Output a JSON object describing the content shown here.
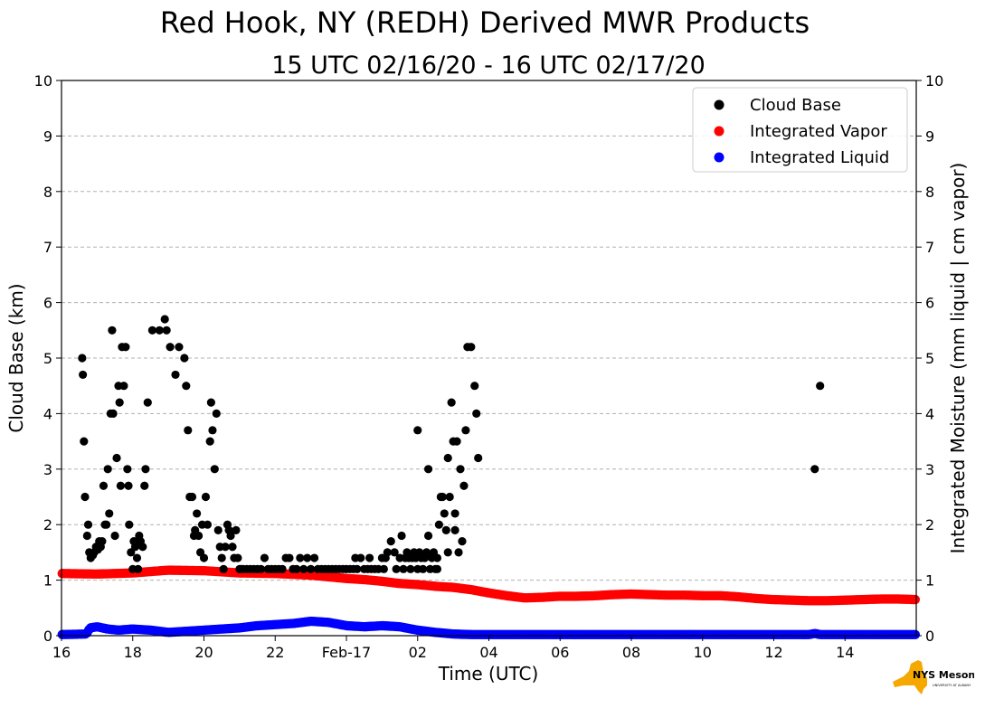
{
  "chart_data": {
    "type": "scatter",
    "title": "Red Hook, NY (REDH) Derived MWR Products",
    "subtitle": "15 UTC 02/16/20 - 16 UTC 02/17/20",
    "xlabel": "Time (UTC)",
    "ylabel": "Cloud Base (km)",
    "ylabel_right": "Integrated Moisture (mm liquid | cm vapor)",
    "x_units": "hours since 16 UTC 02/16",
    "xlim": [
      0,
      24
    ],
    "ylim": [
      0,
      10
    ],
    "ylim_right": [
      0,
      10
    ],
    "x_ticks": [
      {
        "x": 0,
        "label": "16"
      },
      {
        "x": 2,
        "label": "18"
      },
      {
        "x": 4,
        "label": "20"
      },
      {
        "x": 6,
        "label": "22"
      },
      {
        "x": 8,
        "label": "Feb-17"
      },
      {
        "x": 10,
        "label": "02"
      },
      {
        "x": 12,
        "label": "04"
      },
      {
        "x": 14,
        "label": "06"
      },
      {
        "x": 16,
        "label": "08"
      },
      {
        "x": 18,
        "label": "10"
      },
      {
        "x": 20,
        "label": "12"
      },
      {
        "x": 22,
        "label": "14"
      }
    ],
    "y_ticks": [
      "0",
      "1",
      "2",
      "3",
      "4",
      "5",
      "6",
      "7",
      "8",
      "9",
      "10"
    ],
    "grid": "horizontal-dashed",
    "legend_position": "top-right",
    "series": [
      {
        "name": "Cloud Base",
        "color": "#000000",
        "points": [
          [
            0.58,
            5.0
          ],
          [
            0.6,
            4.7
          ],
          [
            0.63,
            3.5
          ],
          [
            0.66,
            2.5
          ],
          [
            0.72,
            1.8
          ],
          [
            0.75,
            2.0
          ],
          [
            0.78,
            1.5
          ],
          [
            0.82,
            1.4
          ],
          [
            0.88,
            1.45
          ],
          [
            0.92,
            1.5
          ],
          [
            0.97,
            1.6
          ],
          [
            1.02,
            1.55
          ],
          [
            1.06,
            1.7
          ],
          [
            1.1,
            1.6
          ],
          [
            1.14,
            1.7
          ],
          [
            1.18,
            2.7
          ],
          [
            1.22,
            2.0
          ],
          [
            1.26,
            2.0
          ],
          [
            1.3,
            3.0
          ],
          [
            1.34,
            2.2
          ],
          [
            1.38,
            4.0
          ],
          [
            1.42,
            5.5
          ],
          [
            1.45,
            4.0
          ],
          [
            1.5,
            1.8
          ],
          [
            1.55,
            3.2
          ],
          [
            1.6,
            4.5
          ],
          [
            1.63,
            4.2
          ],
          [
            1.66,
            2.7
          ],
          [
            1.7,
            5.2
          ],
          [
            1.75,
            4.5
          ],
          [
            1.8,
            5.2
          ],
          [
            1.85,
            3.0
          ],
          [
            1.88,
            2.7
          ],
          [
            1.9,
            2.0
          ],
          [
            1.95,
            1.5
          ],
          [
            2.0,
            1.2
          ],
          [
            2.03,
            1.7
          ],
          [
            2.07,
            1.6
          ],
          [
            2.12,
            1.4
          ],
          [
            2.15,
            1.2
          ],
          [
            2.18,
            1.8
          ],
          [
            2.22,
            1.7
          ],
          [
            2.28,
            1.6
          ],
          [
            2.33,
            2.7
          ],
          [
            2.36,
            3.0
          ],
          [
            2.42,
            4.2
          ],
          [
            2.55,
            5.5
          ],
          [
            2.75,
            5.5
          ],
          [
            2.9,
            5.7
          ],
          [
            2.95,
            5.5
          ],
          [
            3.05,
            5.2
          ],
          [
            3.2,
            4.7
          ],
          [
            3.3,
            5.2
          ],
          [
            3.45,
            5.0
          ],
          [
            3.5,
            4.5
          ],
          [
            3.55,
            3.7
          ],
          [
            3.6,
            2.5
          ],
          [
            3.67,
            2.5
          ],
          [
            3.72,
            1.8
          ],
          [
            3.75,
            1.9
          ],
          [
            3.8,
            2.2
          ],
          [
            3.85,
            1.8
          ],
          [
            3.9,
            1.5
          ],
          [
            3.95,
            2.0
          ],
          [
            4.0,
            1.4
          ],
          [
            4.05,
            2.5
          ],
          [
            4.1,
            2.0
          ],
          [
            4.17,
            3.5
          ],
          [
            4.2,
            4.2
          ],
          [
            4.24,
            3.7
          ],
          [
            4.3,
            3.0
          ],
          [
            4.35,
            4.0
          ],
          [
            4.4,
            1.9
          ],
          [
            4.45,
            1.6
          ],
          [
            4.5,
            1.4
          ],
          [
            4.55,
            1.2
          ],
          [
            4.6,
            1.6
          ],
          [
            4.66,
            2.0
          ],
          [
            4.7,
            1.9
          ],
          [
            4.75,
            1.8
          ],
          [
            4.8,
            1.6
          ],
          [
            4.85,
            1.4
          ],
          [
            4.9,
            1.9
          ],
          [
            4.95,
            1.4
          ],
          [
            5.0,
            1.2
          ],
          [
            5.05,
            1.2
          ],
          [
            5.1,
            1.2
          ],
          [
            5.2,
            1.2
          ],
          [
            5.3,
            1.2
          ],
          [
            5.4,
            1.2
          ],
          [
            5.5,
            1.2
          ],
          [
            5.6,
            1.2
          ],
          [
            5.7,
            1.4
          ],
          [
            5.8,
            1.2
          ],
          [
            5.9,
            1.2
          ],
          [
            6.0,
            1.2
          ],
          [
            6.1,
            1.2
          ],
          [
            6.2,
            1.2
          ],
          [
            6.3,
            1.4
          ],
          [
            6.4,
            1.4
          ],
          [
            6.5,
            1.2
          ],
          [
            6.6,
            1.2
          ],
          [
            6.7,
            1.4
          ],
          [
            6.8,
            1.2
          ],
          [
            6.9,
            1.4
          ],
          [
            7.0,
            1.2
          ],
          [
            7.1,
            1.4
          ],
          [
            7.2,
            1.2
          ],
          [
            7.3,
            1.2
          ],
          [
            7.4,
            1.2
          ],
          [
            7.5,
            1.2
          ],
          [
            7.6,
            1.2
          ],
          [
            7.7,
            1.2
          ],
          [
            7.8,
            1.2
          ],
          [
            7.9,
            1.2
          ],
          [
            8.0,
            1.2
          ],
          [
            8.1,
            1.2
          ],
          [
            8.2,
            1.2
          ],
          [
            8.25,
            1.4
          ],
          [
            8.3,
            1.2
          ],
          [
            8.4,
            1.4
          ],
          [
            8.5,
            1.2
          ],
          [
            8.6,
            1.2
          ],
          [
            8.65,
            1.4
          ],
          [
            8.7,
            1.2
          ],
          [
            8.8,
            1.2
          ],
          [
            8.9,
            1.2
          ],
          [
            9.0,
            1.4
          ],
          [
            9.05,
            1.2
          ],
          [
            9.1,
            1.4
          ],
          [
            9.15,
            1.5
          ],
          [
            9.25,
            1.7
          ],
          [
            9.35,
            1.5
          ],
          [
            9.4,
            1.2
          ],
          [
            9.5,
            1.4
          ],
          [
            9.55,
            1.8
          ],
          [
            9.6,
            1.2
          ],
          [
            9.65,
            1.4
          ],
          [
            9.7,
            1.5
          ],
          [
            9.75,
            1.4
          ],
          [
            9.8,
            1.2
          ],
          [
            9.85,
            1.4
          ],
          [
            9.9,
            1.5
          ],
          [
            9.95,
            1.4
          ],
          [
            10.0,
            1.2
          ],
          [
            10.05,
            1.5
          ],
          [
            10.1,
            1.4
          ],
          [
            10.15,
            1.2
          ],
          [
            10.2,
            1.4
          ],
          [
            10.25,
            1.5
          ],
          [
            10.3,
            1.8
          ],
          [
            10.35,
            1.2
          ],
          [
            10.4,
            1.4
          ],
          [
            10.45,
            1.5
          ],
          [
            10.5,
            1.2
          ],
          [
            10.55,
            1.4
          ],
          [
            10.6,
            2.0
          ],
          [
            10.65,
            2.5
          ],
          [
            10.7,
            2.5
          ],
          [
            10.75,
            2.2
          ],
          [
            10.8,
            1.9
          ],
          [
            10.85,
            3.2
          ],
          [
            10.9,
            2.5
          ],
          [
            10.95,
            4.2
          ],
          [
            11.0,
            3.5
          ],
          [
            11.05,
            2.2
          ],
          [
            11.1,
            3.5
          ],
          [
            11.15,
            1.5
          ],
          [
            11.2,
            3.0
          ],
          [
            11.25,
            1.7
          ],
          [
            11.3,
            2.7
          ],
          [
            11.35,
            3.7
          ],
          [
            11.4,
            5.2
          ],
          [
            11.5,
            5.2
          ],
          [
            11.6,
            4.5
          ],
          [
            11.65,
            4.0
          ],
          [
            11.7,
            3.2
          ],
          [
            10.0,
            3.7
          ],
          [
            10.3,
            3.0
          ],
          [
            10.55,
            1.2
          ],
          [
            10.85,
            1.5
          ],
          [
            11.05,
            1.9
          ],
          [
            21.15,
            3.0
          ],
          [
            21.3,
            4.5
          ]
        ]
      },
      {
        "name": "Integrated Vapor",
        "color": "#ff0000",
        "profile": [
          [
            0,
            1.12
          ],
          [
            1,
            1.11
          ],
          [
            1.5,
            1.12
          ],
          [
            2,
            1.13
          ],
          [
            3,
            1.18
          ],
          [
            4,
            1.17
          ],
          [
            5,
            1.13
          ],
          [
            6,
            1.12
          ],
          [
            7,
            1.09
          ],
          [
            7.5,
            1.06
          ],
          [
            8,
            1.03
          ],
          [
            8.5,
            1.01
          ],
          [
            9,
            0.98
          ],
          [
            9.5,
            0.94
          ],
          [
            10,
            0.92
          ],
          [
            10.5,
            0.89
          ],
          [
            11,
            0.87
          ],
          [
            11.5,
            0.83
          ],
          [
            12,
            0.77
          ],
          [
            12.5,
            0.72
          ],
          [
            13,
            0.68
          ],
          [
            13.5,
            0.69
          ],
          [
            14,
            0.71
          ],
          [
            14.5,
            0.71
          ],
          [
            15,
            0.72
          ],
          [
            15.5,
            0.74
          ],
          [
            16,
            0.75
          ],
          [
            16.5,
            0.74
          ],
          [
            17,
            0.73
          ],
          [
            17.5,
            0.73
          ],
          [
            18,
            0.72
          ],
          [
            18.5,
            0.72
          ],
          [
            19,
            0.7
          ],
          [
            19.5,
            0.67
          ],
          [
            20,
            0.65
          ],
          [
            20.5,
            0.64
          ],
          [
            21,
            0.63
          ],
          [
            21.5,
            0.63
          ],
          [
            22,
            0.64
          ],
          [
            22.5,
            0.65
          ],
          [
            23,
            0.66
          ],
          [
            23.5,
            0.66
          ],
          [
            24,
            0.65
          ]
        ]
      },
      {
        "name": "Integrated Liquid",
        "color": "#0000ff",
        "profile": [
          [
            0,
            0.02
          ],
          [
            0.7,
            0.03
          ],
          [
            0.8,
            0.14
          ],
          [
            1.0,
            0.16
          ],
          [
            1.3,
            0.12
          ],
          [
            1.6,
            0.1
          ],
          [
            2.0,
            0.12
          ],
          [
            2.5,
            0.1
          ],
          [
            3.0,
            0.06
          ],
          [
            3.5,
            0.08
          ],
          [
            4.0,
            0.1
          ],
          [
            4.5,
            0.12
          ],
          [
            5.0,
            0.14
          ],
          [
            5.5,
            0.18
          ],
          [
            6.0,
            0.2
          ],
          [
            6.5,
            0.22
          ],
          [
            7.0,
            0.26
          ],
          [
            7.5,
            0.24
          ],
          [
            8.0,
            0.18
          ],
          [
            8.5,
            0.16
          ],
          [
            9.0,
            0.18
          ],
          [
            9.5,
            0.16
          ],
          [
            10.0,
            0.1
          ],
          [
            10.5,
            0.06
          ],
          [
            11.0,
            0.03
          ],
          [
            11.5,
            0.02
          ],
          [
            12,
            0.02
          ],
          [
            21,
            0.02
          ],
          [
            21.15,
            0.04
          ],
          [
            21.3,
            0.02
          ],
          [
            24,
            0.02
          ]
        ]
      }
    ]
  },
  "logo": {
    "text": "NYS Mesonet",
    "subtext": "UNIVERSITY AT ALBANY"
  }
}
